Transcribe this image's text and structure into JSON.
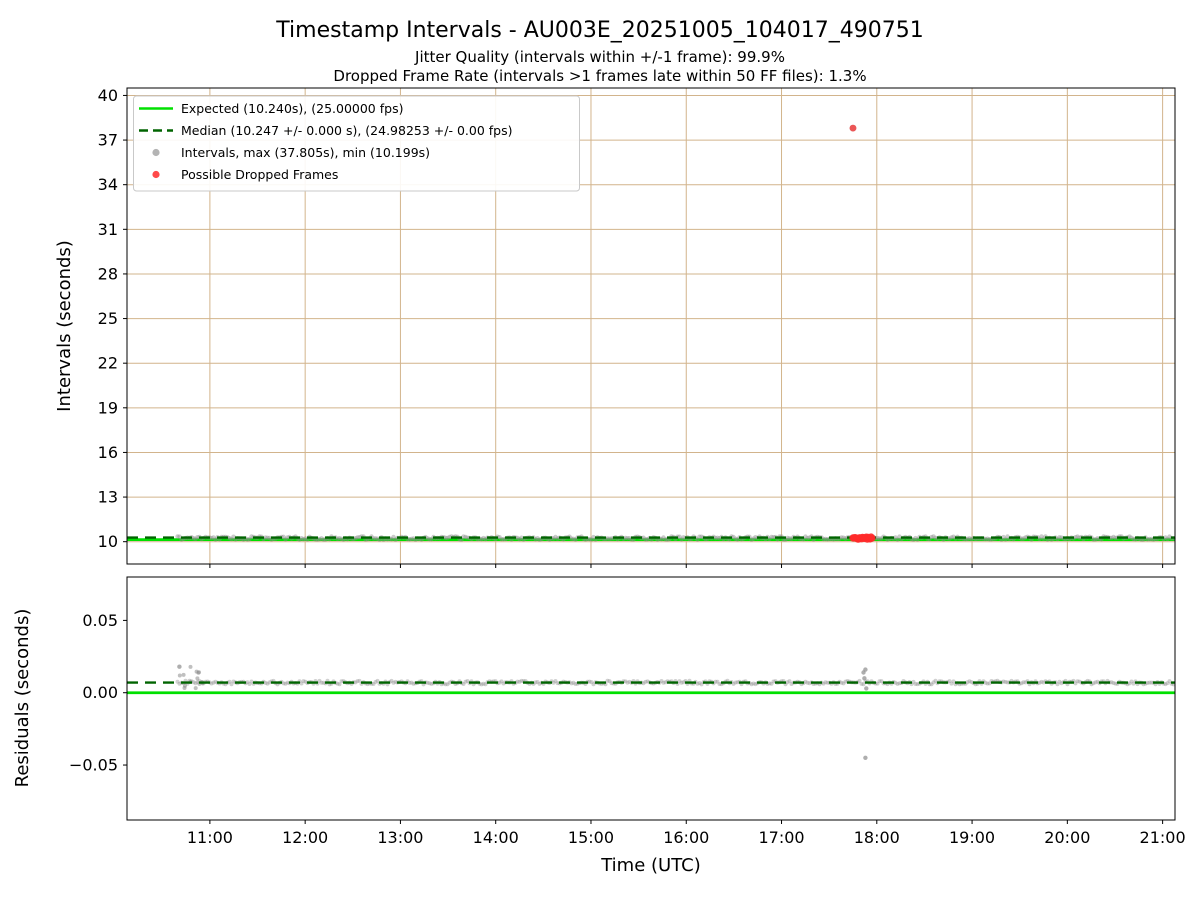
{
  "figure": {
    "title": "Timestamp Intervals - AU003E_20251005_104017_490751",
    "subtitle_jitter": "Jitter Quality (intervals within +/-1 frame): 99.9%",
    "subtitle_dropped": "Dropped Frame Rate (intervals >1 frames late within 50 FF files): 1.3%",
    "xlabel": "Time (UTC)"
  },
  "stats": {
    "jitter_quality_pct": 99.9,
    "dropped_frame_rate_pct": 1.3,
    "expected_interval_s": 10.24,
    "expected_fps": 25.0,
    "median_interval_s": 10.247,
    "median_fps": 24.98253,
    "max_interval_s": 37.805,
    "min_interval_s": 10.199
  },
  "chart_data": [
    {
      "type": "scatter",
      "name": "timestamp-intervals",
      "ylabel": "Intervals (seconds)",
      "ylim": [
        8.5,
        40.5
      ],
      "ytick_values": [
        10,
        13,
        16,
        19,
        22,
        25,
        28,
        31,
        34,
        37,
        40
      ],
      "ytick_labels": [
        "10",
        "13",
        "16",
        "19",
        "22",
        "25",
        "28",
        "31",
        "34",
        "37",
        "40"
      ],
      "xlim": [
        10.13,
        21.13
      ],
      "xtick_values": [
        11,
        12,
        13,
        14,
        15,
        16,
        17,
        18,
        19,
        20,
        21
      ],
      "xtick_labels": [
        "11:00",
        "12:00",
        "13:00",
        "14:00",
        "15:00",
        "16:00",
        "17:00",
        "18:00",
        "19:00",
        "20:00",
        "21:00"
      ],
      "grid": true,
      "grid_color": "#d2b48c",
      "legend_position": "upper left",
      "series": {
        "expected": {
          "label": "Expected (10.240s), (25.00000 fps)",
          "value_s": 10.24,
          "fps": 25.0,
          "color": "#00e000",
          "line_style": "solid"
        },
        "median": {
          "label": "Median (10.247 +/- 0.000 s), (24.98253 +/- 0.00 fps)",
          "value_s": 10.247,
          "fps": 24.98253,
          "color": "#006400",
          "line_style": "dashed"
        },
        "intervals": {
          "label": "Intervals, max (37.805s), min (10.199s)",
          "color": "#8c8c8c",
          "band": {
            "x_start": 10.66,
            "x_end": 21.12,
            "y": 10.247
          },
          "max_point": {
            "x": 17.75,
            "y": 37.805
          },
          "min_s": 10.199
        },
        "dropped_frames": {
          "label": "Possible Dropped Frames",
          "color": "#ff2a2a",
          "outlier": {
            "x": 17.75,
            "y": 37.805
          },
          "cluster": {
            "x_start": 17.75,
            "x_end": 17.95,
            "y": 10.24
          }
        }
      }
    },
    {
      "type": "scatter",
      "name": "residuals",
      "ylabel": "Residuals (seconds)",
      "ylim": [
        -0.088,
        0.08
      ],
      "ytick_values": [
        0.05,
        0.0,
        -0.05
      ],
      "ytick_labels": [
        "0.05",
        "0.00",
        "−0.05"
      ],
      "grid": false,
      "series": {
        "expected": {
          "value": 0.0,
          "color": "#00e000",
          "line_style": "solid"
        },
        "median": {
          "value": 0.007,
          "color": "#006400",
          "line_style": "dashed"
        },
        "residual_band": {
          "x_start": 10.66,
          "x_end": 21.12,
          "y": 0.007,
          "color": "#8c8c8c"
        },
        "start_scatter": {
          "x_start": 10.66,
          "x_end": 10.95,
          "y_min": 0.003,
          "y_max": 0.018
        },
        "notable_points": [
          {
            "x": 10.68,
            "y": 0.018
          },
          {
            "x": 17.86,
            "y": 0.014
          },
          {
            "x": 17.88,
            "y": 0.016
          },
          {
            "x": 17.87,
            "y": 0.01
          },
          {
            "x": 17.89,
            "y": 0.003
          },
          {
            "x": 17.88,
            "y": -0.045
          }
        ]
      }
    }
  ]
}
